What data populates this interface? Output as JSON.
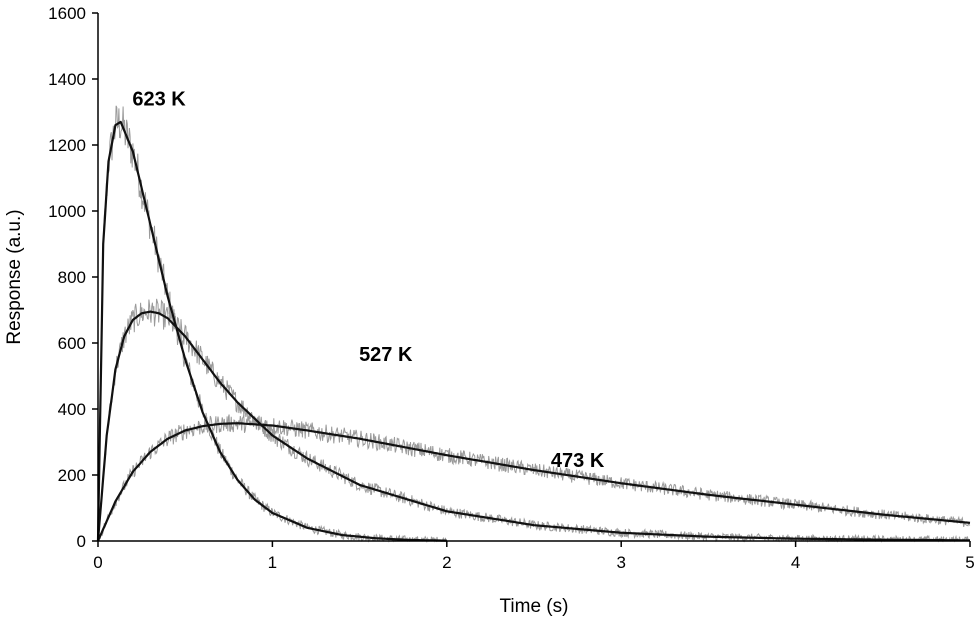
{
  "chart_data": {
    "type": "line",
    "title": "",
    "xlabel": "Time (s)",
    "ylabel": "Response (a.u.)",
    "xlim": [
      0,
      5
    ],
    "ylim": [
      0,
      1600
    ],
    "x_ticks": [
      "0",
      "1",
      "2",
      "3",
      "4",
      "5"
    ],
    "y_ticks": [
      "0",
      "200",
      "400",
      "600",
      "800",
      "1000",
      "1200",
      "1400",
      "1600"
    ],
    "grid": false,
    "legend": "none",
    "colors": {
      "fit": "#111111",
      "measured": "#9a9a9a"
    },
    "series": [
      {
        "name": "623 K",
        "x_end": 2,
        "fit": {
          "x": [
            0,
            0.03,
            0.06,
            0.1,
            0.13,
            0.2,
            0.3,
            0.4,
            0.5,
            0.6,
            0.7,
            0.8,
            0.9,
            1.0,
            1.2,
            1.4,
            1.6,
            1.8,
            2.0
          ],
          "y": [
            0,
            900,
            1150,
            1260,
            1270,
            1180,
            960,
            740,
            550,
            390,
            270,
            185,
            125,
            85,
            40,
            18,
            8,
            3,
            1
          ]
        }
      },
      {
        "name": "527 K",
        "x_end": 5,
        "fit": {
          "x": [
            0,
            0.05,
            0.1,
            0.15,
            0.2,
            0.25,
            0.3,
            0.35,
            0.4,
            0.5,
            0.6,
            0.7,
            0.8,
            1.0,
            1.2,
            1.5,
            2.0,
            2.5,
            3.0,
            3.5,
            4.0,
            4.5,
            5.0
          ],
          "y": [
            0,
            320,
            520,
            620,
            670,
            690,
            695,
            690,
            675,
            620,
            550,
            480,
            420,
            320,
            250,
            170,
            90,
            48,
            25,
            13,
            7,
            4,
            2
          ]
        }
      },
      {
        "name": "473 K",
        "x_end": 5,
        "fit": {
          "x": [
            0,
            0.1,
            0.2,
            0.3,
            0.4,
            0.5,
            0.6,
            0.7,
            0.8,
            1.0,
            1.2,
            1.5,
            2.0,
            2.5,
            3.0,
            3.5,
            4.0,
            4.5,
            5.0
          ],
          "y": [
            0,
            120,
            210,
            270,
            310,
            335,
            348,
            355,
            357,
            350,
            335,
            310,
            260,
            215,
            175,
            140,
            110,
            80,
            55
          ]
        }
      }
    ],
    "annotations": [
      {
        "text": "623 K",
        "x": 0.35,
        "y": 1320
      },
      {
        "text": "527 K",
        "x": 1.65,
        "y": 545
      },
      {
        "text": "473 K",
        "x": 2.75,
        "y": 225
      }
    ]
  }
}
